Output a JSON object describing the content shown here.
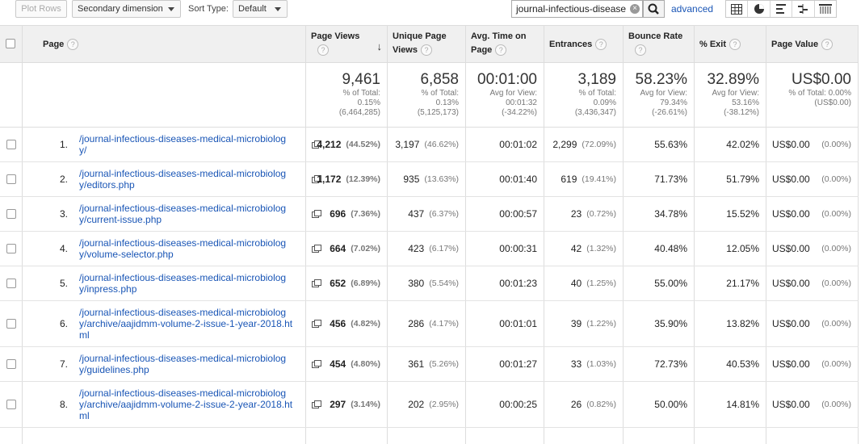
{
  "toolbar": {
    "plot_rows": "Plot Rows",
    "secondary_dimension": "Secondary dimension",
    "sort_type_label": "Sort Type:",
    "sort_type_value": "Default",
    "search_value": "journal-infectious-disease",
    "advanced": "advanced"
  },
  "headers": {
    "page": "Page",
    "page_views": "Page Views",
    "unique_page_views_1": "Unique Page",
    "unique_page_views_2": "Views",
    "avg_time_1": "Avg. Time on",
    "avg_time_2": "Page",
    "entrances": "Entrances",
    "bounce_rate": "Bounce Rate",
    "exit": "% Exit",
    "page_value": "Page Value",
    "help": "?"
  },
  "totals": {
    "page_views": {
      "big": "9,461",
      "l1": "% of Total:",
      "l2": "0.15%",
      "l3": "(6,464,285)"
    },
    "unique": {
      "big": "6,858",
      "l1": "% of Total:",
      "l2": "0.13%",
      "l3": "(5,125,173)"
    },
    "avg_time": {
      "big": "00:01:00",
      "l1": "Avg for View:",
      "l2": "00:01:32",
      "l3": "(-34.22%)"
    },
    "entrances": {
      "big": "3,189",
      "l1": "% of Total:",
      "l2": "0.09%",
      "l3": "(3,436,347)"
    },
    "bounce": {
      "big": "58.23%",
      "l1": "Avg for View:",
      "l2": "79.34%",
      "l3": "(-26.61%)"
    },
    "exit": {
      "big": "32.89%",
      "l1": "Avg for View:",
      "l2": "53.16%",
      "l3": "(-38.12%)"
    },
    "value": {
      "big": "US$0.00",
      "l1": "% of Total: 0.00%",
      "l2": "(US$0.00)",
      "l3": ""
    }
  },
  "rows": [
    {
      "idx": "1.",
      "page_l1": "/journal-infectious-diseases-medical-microbiolog",
      "page_l2": "y/",
      "page_l3": "",
      "pv": "4,212",
      "pv_pct": "(44.52%)",
      "upv": "3,197",
      "upv_pct": "(46.62%)",
      "time": "00:01:02",
      "ent": "2,299",
      "ent_pct": "(72.09%)",
      "bounce": "55.63%",
      "exit": "42.02%",
      "value": "US$0.00",
      "value_pct": "(0.00%)"
    },
    {
      "idx": "2.",
      "page_l1": "/journal-infectious-diseases-medical-microbiolog",
      "page_l2": "y/editors.php",
      "page_l3": "",
      "pv": "1,172",
      "pv_pct": "(12.39%)",
      "upv": "935",
      "upv_pct": "(13.63%)",
      "time": "00:01:40",
      "ent": "619",
      "ent_pct": "(19.41%)",
      "bounce": "71.73%",
      "exit": "51.79%",
      "value": "US$0.00",
      "value_pct": "(0.00%)"
    },
    {
      "idx": "3.",
      "page_l1": "/journal-infectious-diseases-medical-microbiolog",
      "page_l2": "y/current-issue.php",
      "page_l3": "",
      "pv": "696",
      "pv_pct": "(7.36%)",
      "upv": "437",
      "upv_pct": "(6.37%)",
      "time": "00:00:57",
      "ent": "23",
      "ent_pct": "(0.72%)",
      "bounce": "34.78%",
      "exit": "15.52%",
      "value": "US$0.00",
      "value_pct": "(0.00%)"
    },
    {
      "idx": "4.",
      "page_l1": "/journal-infectious-diseases-medical-microbiolog",
      "page_l2": "y/volume-selector.php",
      "page_l3": "",
      "pv": "664",
      "pv_pct": "(7.02%)",
      "upv": "423",
      "upv_pct": "(6.17%)",
      "time": "00:00:31",
      "ent": "42",
      "ent_pct": "(1.32%)",
      "bounce": "40.48%",
      "exit": "12.05%",
      "value": "US$0.00",
      "value_pct": "(0.00%)"
    },
    {
      "idx": "5.",
      "page_l1": "/journal-infectious-diseases-medical-microbiolog",
      "page_l2": "y/inpress.php",
      "page_l3": "",
      "pv": "652",
      "pv_pct": "(6.89%)",
      "upv": "380",
      "upv_pct": "(5.54%)",
      "time": "00:01:23",
      "ent": "40",
      "ent_pct": "(1.25%)",
      "bounce": "55.00%",
      "exit": "21.17%",
      "value": "US$0.00",
      "value_pct": "(0.00%)"
    },
    {
      "idx": "6.",
      "page_l1": "/journal-infectious-diseases-medical-microbiolog",
      "page_l2": "y/archive/aajidmm-volume-2-issue-1-year-2018.ht",
      "page_l3": "ml",
      "pv": "456",
      "pv_pct": "(4.82%)",
      "upv": "286",
      "upv_pct": "(4.17%)",
      "time": "00:01:01",
      "ent": "39",
      "ent_pct": "(1.22%)",
      "bounce": "35.90%",
      "exit": "13.82%",
      "value": "US$0.00",
      "value_pct": "(0.00%)"
    },
    {
      "idx": "7.",
      "page_l1": "/journal-infectious-diseases-medical-microbiolog",
      "page_l2": "y/guidelines.php",
      "page_l3": "",
      "pv": "454",
      "pv_pct": "(4.80%)",
      "upv": "361",
      "upv_pct": "(5.26%)",
      "time": "00:01:27",
      "ent": "33",
      "ent_pct": "(1.03%)",
      "bounce": "72.73%",
      "exit": "40.53%",
      "value": "US$0.00",
      "value_pct": "(0.00%)"
    },
    {
      "idx": "8.",
      "page_l1": "/journal-infectious-diseases-medical-microbiolog",
      "page_l2": "y/archive/aajidmm-volume-2-issue-2-year-2018.ht",
      "page_l3": "ml",
      "pv": "297",
      "pv_pct": "(3.14%)",
      "upv": "202",
      "upv_pct": "(2.95%)",
      "time": "00:00:25",
      "ent": "26",
      "ent_pct": "(0.82%)",
      "bounce": "50.00%",
      "exit": "14.81%",
      "value": "US$0.00",
      "value_pct": "(0.00%)"
    }
  ]
}
